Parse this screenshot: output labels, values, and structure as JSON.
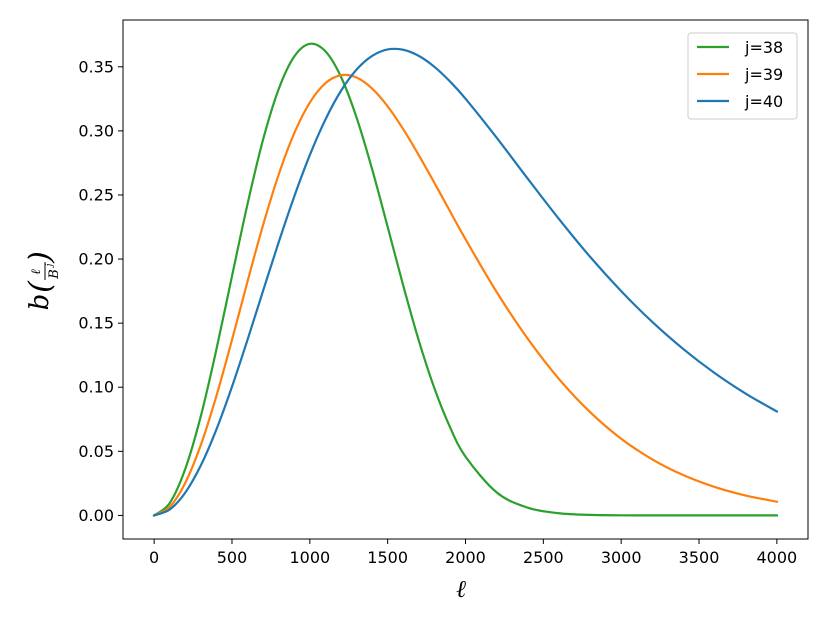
{
  "chart_data": {
    "type": "line",
    "title": "",
    "xlabel": "ℓ",
    "ylabel": {
      "b": "b",
      "num": "ℓ",
      "den_base": "B",
      "den_exp": "j"
    },
    "xlim": [
      -200,
      4200
    ],
    "ylim": [
      -0.0184,
      0.3865
    ],
    "x_ticks": [
      0,
      500,
      1000,
      1500,
      2000,
      2500,
      3000,
      3500,
      4000
    ],
    "x_tick_labels": [
      "0",
      "500",
      "1000",
      "1500",
      "2000",
      "2500",
      "3000",
      "3500",
      "4000"
    ],
    "y_ticks": [
      0.0,
      0.05,
      0.1,
      0.15,
      0.2,
      0.25,
      0.3,
      0.35
    ],
    "y_tick_labels": [
      "0.00",
      "0.05",
      "0.10",
      "0.15",
      "0.20",
      "0.25",
      "0.30",
      "0.35"
    ],
    "grid": false,
    "legend_position": "top-right",
    "series": [
      {
        "name": "j=38",
        "color": "#2ca02c",
        "x": [
          0,
          100,
          200,
          300,
          400,
          500,
          600,
          700,
          800,
          900,
          1000,
          1100,
          1200,
          1300,
          1400,
          1500,
          1600,
          1700,
          1800,
          1900,
          2000,
          2200,
          2400,
          2600,
          2800,
          3000,
          3200,
          3400,
          3600,
          3800,
          4000
        ],
        "values": [
          0.0,
          0.0096,
          0.0363,
          0.0775,
          0.1295,
          0.1866,
          0.243,
          0.2933,
          0.3326,
          0.358,
          0.3679,
          0.3621,
          0.3422,
          0.3105,
          0.2702,
          0.2251,
          0.1793,
          0.1364,
          0.0993,
          0.069,
          0.0459,
          0.018,
          0.006,
          0.0017,
          0.0004,
          0.0001,
          0.0,
          0.0,
          0.0,
          0.0,
          0.0
        ]
      },
      {
        "name": "j=39",
        "color": "#ff7f0e",
        "x": [
          0,
          100,
          200,
          300,
          400,
          500,
          600,
          700,
          800,
          900,
          1000,
          1100,
          1200,
          1300,
          1400,
          1500,
          1600,
          1700,
          1800,
          1900,
          2000,
          2200,
          2400,
          2600,
          2800,
          3000,
          3200,
          3400,
          3600,
          3800,
          4000
        ],
        "values": [
          0.0,
          0.0066,
          0.0254,
          0.055,
          0.0932,
          0.1369,
          0.1826,
          0.2266,
          0.2659,
          0.2982,
          0.3221,
          0.3372,
          0.3434,
          0.3416,
          0.333,
          0.3191,
          0.3013,
          0.281,
          0.2595,
          0.2374,
          0.2155,
          0.1743,
          0.1378,
          0.1065,
          0.0806,
          0.0598,
          0.0437,
          0.0314,
          0.0222,
          0.0155,
          0.0107
        ]
      },
      {
        "name": "j=40",
        "color": "#1f77b4",
        "x": [
          0,
          100,
          200,
          300,
          400,
          500,
          600,
          700,
          800,
          900,
          1000,
          1100,
          1200,
          1300,
          1400,
          1500,
          1600,
          1700,
          1800,
          1900,
          2000,
          2200,
          2400,
          2600,
          2800,
          3000,
          3200,
          3400,
          3600,
          3800,
          4000
        ],
        "values": [
          0.0,
          0.0046,
          0.0178,
          0.039,
          0.0671,
          0.1004,
          0.1371,
          0.1753,
          0.2131,
          0.2488,
          0.2811,
          0.3088,
          0.3312,
          0.3478,
          0.3585,
          0.3635,
          0.3633,
          0.3585,
          0.35,
          0.3386,
          0.3251,
          0.2947,
          0.2627,
          0.2313,
          0.2018,
          0.175,
          0.1509,
          0.1297,
          0.1111,
          0.095,
          0.0811
        ]
      }
    ]
  }
}
